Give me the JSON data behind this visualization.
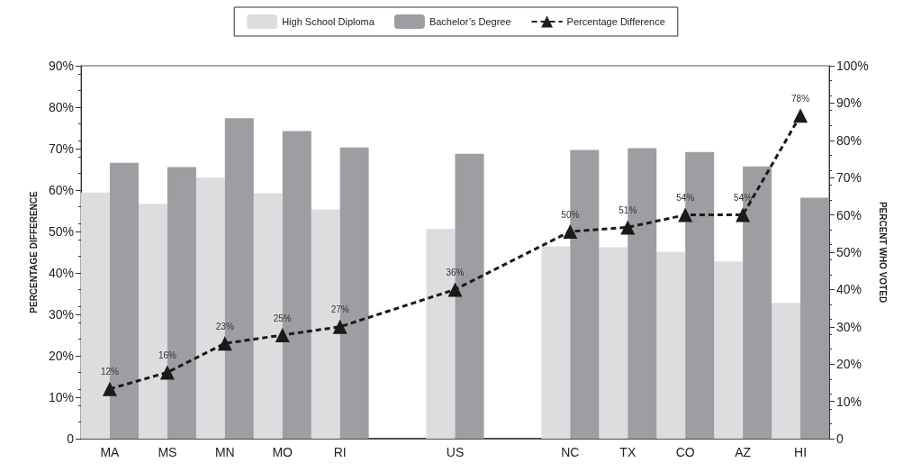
{
  "chart_data": {
    "type": "bar",
    "ylabel": "PERCENTAGE DIFFERENCE",
    "y2label": "PERCENT WHO VOTED",
    "categories": [
      "MA",
      "MS",
      "MN",
      "MO",
      "RI",
      null,
      "US",
      null,
      "NC",
      "TX",
      "CO",
      "AZ",
      "HI"
    ],
    "series": [
      {
        "name": "High School Diploma",
        "axis": "y2",
        "color": "#dcdddf",
        "values": [
          66.0,
          63.0,
          70.0,
          65.8,
          61.5,
          null,
          56.2,
          null,
          51.6,
          51.3,
          50.1,
          47.5,
          36.4
        ]
      },
      {
        "name": "Bachelor’s Degree",
        "axis": "y2",
        "color": "#9d9ea2",
        "values": [
          74.0,
          72.8,
          85.9,
          82.5,
          78.1,
          null,
          76.4,
          null,
          77.4,
          77.9,
          76.9,
          73.0,
          64.6
        ]
      },
      {
        "name": "Percentage Difference",
        "type": "line",
        "axis": "y",
        "color": "#1a1a1a",
        "marker": "triangle",
        "line_style": "dashed",
        "values": [
          12,
          16,
          23,
          25,
          27,
          null,
          36,
          null,
          50,
          51,
          54,
          54,
          78
        ],
        "value_labels": [
          "12%",
          "16%",
          "23%",
          "25%",
          "27%",
          null,
          "36%",
          null,
          "50%",
          "51%",
          "54%",
          "54%",
          "78%"
        ]
      }
    ],
    "ylim": [
      0,
      90
    ],
    "yticks": [
      {
        "value": 0,
        "label": "0"
      },
      {
        "value": 10,
        "label": "10%"
      },
      {
        "value": 20,
        "label": "20%"
      },
      {
        "value": 30,
        "label": "30%"
      },
      {
        "value": 40,
        "label": "40%"
      },
      {
        "value": 50,
        "label": "50%"
      },
      {
        "value": 60,
        "label": "60%"
      },
      {
        "value": 70,
        "label": "70%"
      },
      {
        "value": 80,
        "label": "80%"
      },
      {
        "value": 90,
        "label": "90%"
      }
    ],
    "y2lim": [
      0,
      100
    ],
    "y2ticks": [
      {
        "value": 0,
        "label": "0"
      },
      {
        "value": 10,
        "label": "10%"
      },
      {
        "value": 20,
        "label": "20%"
      },
      {
        "value": 30,
        "label": "30%"
      },
      {
        "value": 40,
        "label": "40%"
      },
      {
        "value": 50,
        "label": "50%"
      },
      {
        "value": 60,
        "label": "60%"
      },
      {
        "value": 70,
        "label": "70%"
      },
      {
        "value": 80,
        "label": "80%"
      },
      {
        "value": 90,
        "label": "90%"
      },
      {
        "value": 100,
        "label": "100%"
      }
    ],
    "grid": false,
    "legend": "top"
  }
}
